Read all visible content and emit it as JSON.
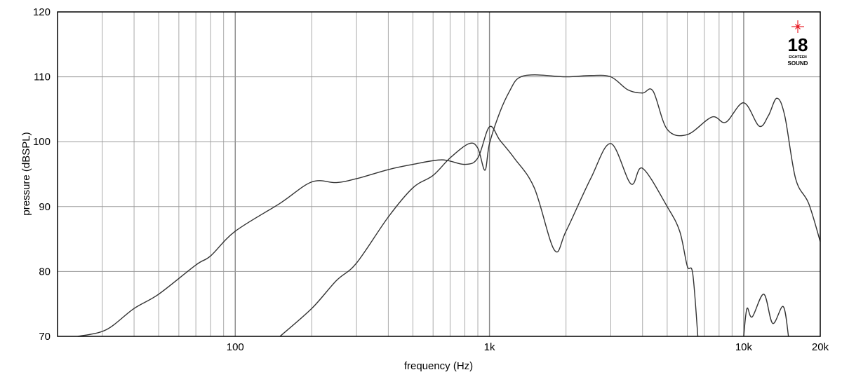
{
  "chart_data": {
    "type": "line",
    "title": "",
    "xlabel": "frequency (Hz)",
    "ylabel": "pressure (dBSPL)",
    "xscale": "log",
    "xlim": [
      20,
      20000
    ],
    "ylim": [
      70,
      120
    ],
    "grid": true,
    "x_ticks": [
      {
        "v": 100,
        "label": "100"
      },
      {
        "v": 1000,
        "label": "1k"
      },
      {
        "v": 10000,
        "label": "10k"
      },
      {
        "v": 20000,
        "label": "20k"
      }
    ],
    "y_ticks": [
      {
        "v": 70,
        "label": "70"
      },
      {
        "v": 80,
        "label": "80"
      },
      {
        "v": 90,
        "label": "90"
      },
      {
        "v": 100,
        "label": "100"
      },
      {
        "v": 110,
        "label": "110"
      },
      {
        "v": 120,
        "label": "120"
      }
    ],
    "line_color": "#333333",
    "series": [
      {
        "points": [
          [
            24,
            70
          ],
          [
            31,
            71
          ],
          [
            40,
            74.3
          ],
          [
            50,
            76.5
          ],
          [
            70,
            81
          ],
          [
            80,
            82.4
          ],
          [
            100,
            86.2
          ],
          [
            150,
            90.5
          ],
          [
            200,
            93.8
          ],
          [
            250,
            93.7
          ],
          [
            300,
            94.3
          ],
          [
            400,
            95.7
          ],
          [
            500,
            96.5
          ],
          [
            650,
            97.2
          ],
          [
            800,
            96.5
          ],
          [
            900,
            97.5
          ],
          [
            1000,
            102.3
          ],
          [
            1100,
            100.2
          ],
          [
            1250,
            97.5
          ],
          [
            1500,
            92.9
          ],
          [
            1800,
            83.3
          ],
          [
            2000,
            86.2
          ],
          [
            2500,
            94.3
          ],
          [
            3000,
            99.7
          ],
          [
            3600,
            93.5
          ],
          [
            4000,
            95.9
          ],
          [
            5000,
            90
          ],
          [
            5600,
            86.2
          ],
          [
            6000,
            80.8
          ],
          [
            6300,
            79.7
          ],
          [
            6600,
            70
          ]
        ]
      },
      {
        "points": [
          [
            150,
            70
          ],
          [
            200,
            74.3
          ],
          [
            250,
            78.6
          ],
          [
            300,
            81.3
          ],
          [
            400,
            88.4
          ],
          [
            500,
            92.9
          ],
          [
            600,
            94.8
          ],
          [
            700,
            97.5
          ],
          [
            830,
            99.7
          ],
          [
            900,
            99
          ],
          [
            960,
            95.6
          ],
          [
            1000,
            99.7
          ],
          [
            1100,
            104.6
          ],
          [
            1200,
            107.8
          ],
          [
            1300,
            109.8
          ],
          [
            1500,
            110.3
          ],
          [
            2000,
            110
          ],
          [
            2500,
            110.2
          ],
          [
            3000,
            110
          ],
          [
            3500,
            108
          ],
          [
            4000,
            107.5
          ],
          [
            4400,
            107.8
          ],
          [
            5000,
            101.9
          ],
          [
            6000,
            101.1
          ],
          [
            7500,
            103.8
          ],
          [
            8500,
            103
          ],
          [
            10000,
            106
          ],
          [
            11500,
            102.4
          ],
          [
            12500,
            104
          ],
          [
            13500,
            106.7
          ],
          [
            14500,
            104
          ],
          [
            16000,
            94.3
          ],
          [
            18000,
            90.5
          ],
          [
            20000,
            84.6
          ]
        ]
      },
      {
        "points": [
          [
            10000,
            70
          ],
          [
            10300,
            74.3
          ],
          [
            10800,
            73
          ],
          [
            12000,
            76.5
          ],
          [
            13000,
            72
          ],
          [
            14300,
            74.6
          ],
          [
            15000,
            70
          ]
        ]
      }
    ]
  },
  "logo": {
    "number": "18",
    "line1": "EIGHTEEN",
    "line2": "SOUND",
    "star_color": "#e8202a"
  }
}
